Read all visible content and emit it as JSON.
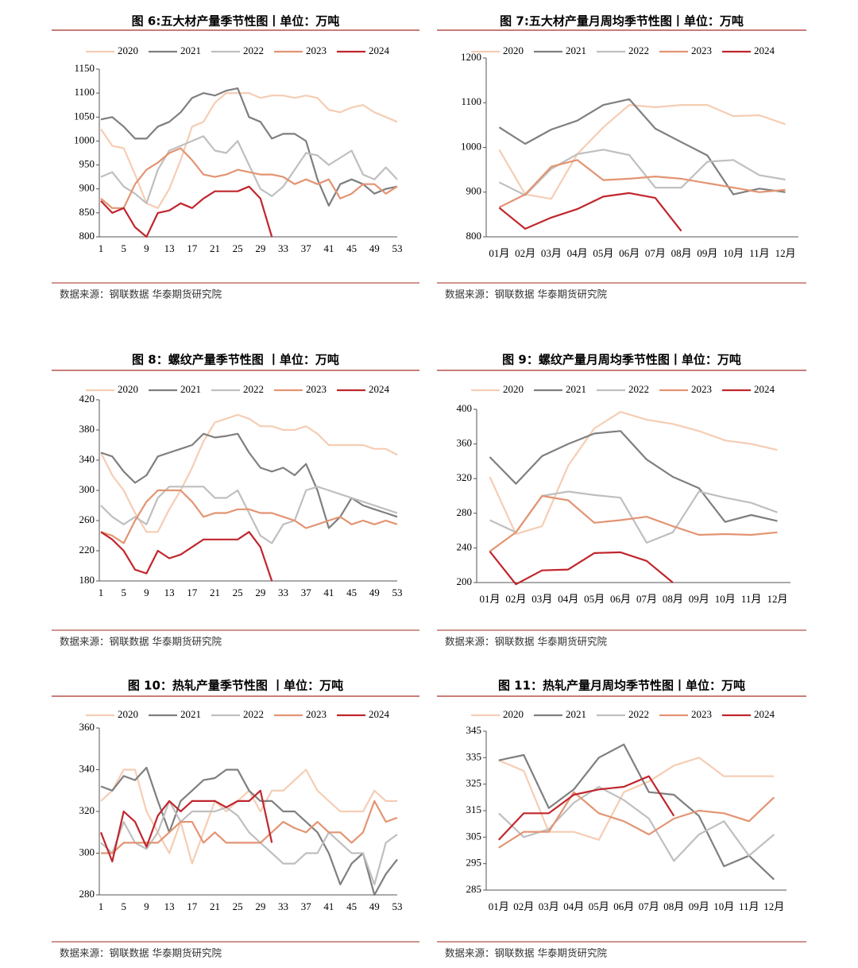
{
  "chart_data": [
    {
      "type": "line",
      "title": "图 6:五大材产量季节性图丨单位：万吨",
      "source": "数据来源：钢联数据 华泰期货研究院",
      "x": [
        1,
        3,
        5,
        7,
        9,
        11,
        13,
        15,
        17,
        19,
        21,
        23,
        25,
        27,
        29,
        31,
        33,
        35,
        37,
        39,
        41,
        43,
        45,
        47,
        49,
        51,
        53
      ],
      "xlim": [
        1,
        53
      ],
      "xticks": [
        1,
        5,
        9,
        13,
        17,
        21,
        25,
        29,
        33,
        37,
        41,
        45,
        49,
        53
      ],
      "ylim": [
        800,
        1150
      ],
      "yticks": [
        800,
        850,
        900,
        950,
        1000,
        1050,
        1100,
        1150
      ],
      "series": [
        {
          "name": "2020",
          "color": "#f5cdb4",
          "values": [
            1025,
            990,
            985,
            930,
            870,
            860,
            900,
            960,
            1030,
            1040,
            1080,
            1100,
            1100,
            1100,
            1090,
            1095,
            1095,
            1090,
            1095,
            1090,
            1065,
            1060,
            1070,
            1075,
            1060,
            1050,
            1040
          ]
        },
        {
          "name": "2021",
          "color": "#7f7f7f",
          "values": [
            1045,
            1050,
            1030,
            1005,
            1005,
            1030,
            1040,
            1060,
            1090,
            1100,
            1095,
            1105,
            1110,
            1050,
            1040,
            1005,
            1015,
            1015,
            1000,
            920,
            865,
            910,
            920,
            910,
            890,
            900,
            905
          ]
        },
        {
          "name": "2022",
          "color": "#bfbfbf",
          "values": [
            925,
            935,
            905,
            890,
            870,
            940,
            980,
            990,
            1000,
            1010,
            980,
            975,
            1000,
            950,
            900,
            885,
            905,
            940,
            975,
            970,
            950,
            965,
            980,
            930,
            920,
            945,
            920
          ]
        },
        {
          "name": "2023",
          "color": "#e39473",
          "values": [
            880,
            860,
            860,
            910,
            940,
            955,
            975,
            985,
            960,
            930,
            925,
            930,
            940,
            935,
            930,
            930,
            925,
            910,
            920,
            910,
            920,
            880,
            890,
            910,
            910,
            890,
            905
          ]
        },
        {
          "name": "2024",
          "color": "#c0262d",
          "values": [
            875,
            850,
            860,
            820,
            800,
            850,
            855,
            870,
            860,
            880,
            895,
            895,
            895,
            905,
            880,
            800,
            null,
            null,
            null,
            null,
            null,
            null,
            null,
            null,
            null,
            null,
            null
          ]
        }
      ]
    },
    {
      "type": "line",
      "title": "图 7:五大材产量月周均季节性图丨单位：万吨",
      "source": "数据来源：钢联数据 华泰期货研究院",
      "categories": [
        "01月",
        "02月",
        "03月",
        "04月",
        "05月",
        "06月",
        "07月",
        "08月",
        "09月",
        "10月",
        "11月",
        "12月"
      ],
      "ylim": [
        800,
        1200
      ],
      "yticks": [
        800,
        900,
        1000,
        1100,
        1200
      ],
      "series": [
        {
          "name": "2020",
          "color": "#f5cdb4",
          "values": [
            995,
            895,
            885,
            985,
            1045,
            1095,
            1090,
            1095,
            1095,
            1070,
            1072,
            1052
          ]
        },
        {
          "name": "2021",
          "color": "#7f7f7f",
          "values": [
            1045,
            1008,
            1040,
            1060,
            1095,
            1108,
            1042,
            1012,
            982,
            895,
            908,
            900
          ]
        },
        {
          "name": "2022",
          "color": "#bfbfbf",
          "values": [
            922,
            893,
            952,
            985,
            995,
            983,
            910,
            910,
            968,
            972,
            938,
            928
          ]
        },
        {
          "name": "2023",
          "color": "#e39473",
          "values": [
            866,
            895,
            957,
            972,
            927,
            930,
            935,
            930,
            920,
            910,
            900,
            905
          ]
        },
        {
          "name": "2024",
          "color": "#c0262d",
          "values": [
            865,
            818,
            843,
            862,
            890,
            898,
            887,
            813,
            null,
            null,
            null,
            null
          ]
        }
      ]
    },
    {
      "type": "line",
      "title": "图 8：螺纹产量季节性图 丨单位：万吨",
      "source": "数据来源：钢联数据 华泰期货研究院",
      "x": [
        1,
        3,
        5,
        7,
        9,
        11,
        13,
        15,
        17,
        19,
        21,
        23,
        25,
        27,
        29,
        31,
        33,
        35,
        37,
        39,
        41,
        43,
        45,
        47,
        49,
        51,
        53
      ],
      "xlim": [
        1,
        53
      ],
      "xticks": [
        1,
        5,
        9,
        13,
        17,
        21,
        25,
        29,
        33,
        37,
        41,
        45,
        49,
        53
      ],
      "ylim": [
        180,
        420
      ],
      "yticks": [
        180,
        220,
        260,
        300,
        340,
        380,
        420
      ],
      "series": [
        {
          "name": "2020",
          "color": "#f5cdb4",
          "values": [
            350,
            320,
            300,
            270,
            245,
            245,
            275,
            300,
            330,
            365,
            390,
            395,
            400,
            395,
            385,
            385,
            380,
            380,
            385,
            375,
            360,
            360,
            360,
            360,
            355,
            355,
            347
          ]
        },
        {
          "name": "2021",
          "color": "#7f7f7f",
          "values": [
            350,
            345,
            325,
            310,
            320,
            345,
            350,
            355,
            360,
            375,
            370,
            372,
            375,
            350,
            330,
            325,
            330,
            320,
            335,
            300,
            250,
            265,
            290,
            280,
            275,
            270,
            265
          ]
        },
        {
          "name": "2022",
          "color": "#bfbfbf",
          "values": [
            280,
            265,
            255,
            265,
            255,
            290,
            305,
            305,
            305,
            305,
            290,
            290,
            300,
            270,
            240,
            230,
            255,
            260,
            300,
            305,
            300,
            295,
            290,
            285,
            280,
            275,
            270
          ]
        },
        {
          "name": "2023",
          "color": "#e39473",
          "values": [
            245,
            240,
            230,
            260,
            285,
            300,
            300,
            300,
            285,
            265,
            270,
            270,
            275,
            275,
            270,
            270,
            265,
            260,
            250,
            255,
            260,
            265,
            255,
            260,
            255,
            260,
            255
          ]
        },
        {
          "name": "2024",
          "color": "#c0262d",
          "values": [
            245,
            235,
            220,
            195,
            190,
            220,
            210,
            215,
            225,
            235,
            235,
            235,
            235,
            245,
            225,
            180,
            null,
            null,
            null,
            null,
            null,
            null,
            null,
            null,
            null,
            null,
            null
          ]
        }
      ]
    },
    {
      "type": "line",
      "title": "图 9：螺纹产量月周均季节性图丨单位：万吨",
      "source": "数据来源：钢联数据 华泰期货研究院",
      "categories": [
        "01月",
        "02月",
        "03月",
        "04月",
        "05月",
        "06月",
        "07月",
        "08月",
        "09月",
        "10月",
        "11月",
        "12月"
      ],
      "ylim": [
        200,
        400
      ],
      "yticks": [
        200,
        240,
        280,
        320,
        360,
        400
      ],
      "series": [
        {
          "name": "2020",
          "color": "#f5cdb4",
          "values": [
            322,
            256,
            265,
            335,
            378,
            397,
            388,
            383,
            375,
            364,
            360,
            353
          ]
        },
        {
          "name": "2021",
          "color": "#7f7f7f",
          "values": [
            345,
            314,
            346,
            360,
            372,
            375,
            342,
            322,
            309,
            270,
            278,
            271
          ]
        },
        {
          "name": "2022",
          "color": "#bfbfbf",
          "values": [
            272,
            258,
            300,
            305,
            301,
            298,
            246,
            258,
            305,
            298,
            292,
            281
          ]
        },
        {
          "name": "2023",
          "color": "#e39473",
          "values": [
            236,
            258,
            300,
            295,
            269,
            272,
            276,
            265,
            255,
            256,
            255,
            258
          ]
        },
        {
          "name": "2024",
          "color": "#c0262d",
          "values": [
            236,
            198,
            214,
            215,
            234,
            235,
            225,
            200,
            null,
            null,
            null,
            null
          ]
        }
      ]
    },
    {
      "type": "line",
      "title": "图 10：热轧产量季节性图 丨单位：万吨",
      "source": "数据来源：钢联数据 华泰期货研究院",
      "x": [
        1,
        3,
        5,
        7,
        9,
        11,
        13,
        15,
        17,
        19,
        21,
        23,
        25,
        27,
        29,
        31,
        33,
        35,
        37,
        39,
        41,
        43,
        45,
        47,
        49,
        51,
        53
      ],
      "xlim": [
        1,
        53
      ],
      "xticks": [
        1,
        5,
        9,
        13,
        17,
        21,
        25,
        29,
        33,
        37,
        41,
        45,
        49,
        53
      ],
      "ylim": [
        280,
        360
      ],
      "yticks": [
        280,
        300,
        320,
        340,
        360
      ],
      "series": [
        {
          "name": "2020",
          "color": "#f5cdb4",
          "values": [
            325,
            330,
            340,
            340,
            320,
            310,
            300,
            315,
            295,
            310,
            325,
            320,
            325,
            330,
            320,
            330,
            330,
            335,
            340,
            330,
            325,
            320,
            320,
            320,
            330,
            325,
            325
          ]
        },
        {
          "name": "2021",
          "color": "#7f7f7f",
          "values": [
            332,
            330,
            337,
            335,
            341,
            325,
            310,
            325,
            330,
            335,
            336,
            340,
            340,
            330,
            325,
            325,
            320,
            320,
            315,
            310,
            300,
            285,
            295,
            300,
            280,
            290,
            297
          ]
        },
        {
          "name": "2022",
          "color": "#bfbfbf",
          "values": [
            305,
            300,
            315,
            305,
            302,
            310,
            325,
            315,
            320,
            320,
            320,
            322,
            318,
            310,
            305,
            300,
            295,
            295,
            300,
            300,
            310,
            305,
            300,
            300,
            285,
            305,
            309
          ]
        },
        {
          "name": "2023",
          "color": "#e39473",
          "values": [
            300,
            300,
            305,
            305,
            305,
            305,
            310,
            315,
            315,
            305,
            310,
            305,
            305,
            305,
            305,
            310,
            315,
            312,
            310,
            315,
            310,
            310,
            305,
            310,
            325,
            315,
            317
          ]
        },
        {
          "name": "2024",
          "color": "#c0262d",
          "values": [
            310,
            296,
            320,
            315,
            303,
            318,
            325,
            320,
            325,
            325,
            325,
            322,
            325,
            325,
            330,
            305,
            null,
            null,
            null,
            null,
            null,
            null,
            null,
            null,
            null,
            null,
            null
          ]
        }
      ]
    },
    {
      "type": "line",
      "title": "图 11：热轧产量月周均季节性图丨单位：万吨",
      "source": "数据来源：钢联数据 华泰期货研究院",
      "categories": [
        "01月",
        "02月",
        "03月",
        "04月",
        "05月",
        "06月",
        "07月",
        "08月",
        "09月",
        "10月",
        "11月",
        "12月"
      ],
      "ylim": [
        285,
        345
      ],
      "yticks": [
        285,
        295,
        305,
        315,
        325,
        335,
        345
      ],
      "series": [
        {
          "name": "2020",
          "color": "#f5cdb4",
          "values": [
            334,
            330,
            307,
            307,
            304,
            322,
            326,
            332,
            335,
            328,
            328,
            328
          ]
        },
        {
          "name": "2021",
          "color": "#7f7f7f",
          "values": [
            334,
            336,
            316,
            323,
            335,
            340,
            322,
            321,
            313,
            294,
            298,
            289
          ]
        },
        {
          "name": "2022",
          "color": "#bfbfbf",
          "values": [
            314,
            305,
            308,
            318,
            324,
            319,
            312,
            296,
            306,
            311,
            298,
            306
          ]
        },
        {
          "name": "2023",
          "color": "#e39473",
          "values": [
            301,
            307,
            307,
            322,
            314,
            311,
            306,
            312,
            315,
            314,
            311,
            320
          ]
        },
        {
          "name": "2024",
          "color": "#c0262d",
          "values": [
            304,
            314,
            314,
            321,
            323,
            324,
            328,
            313,
            null,
            null,
            null,
            null
          ]
        }
      ]
    }
  ]
}
